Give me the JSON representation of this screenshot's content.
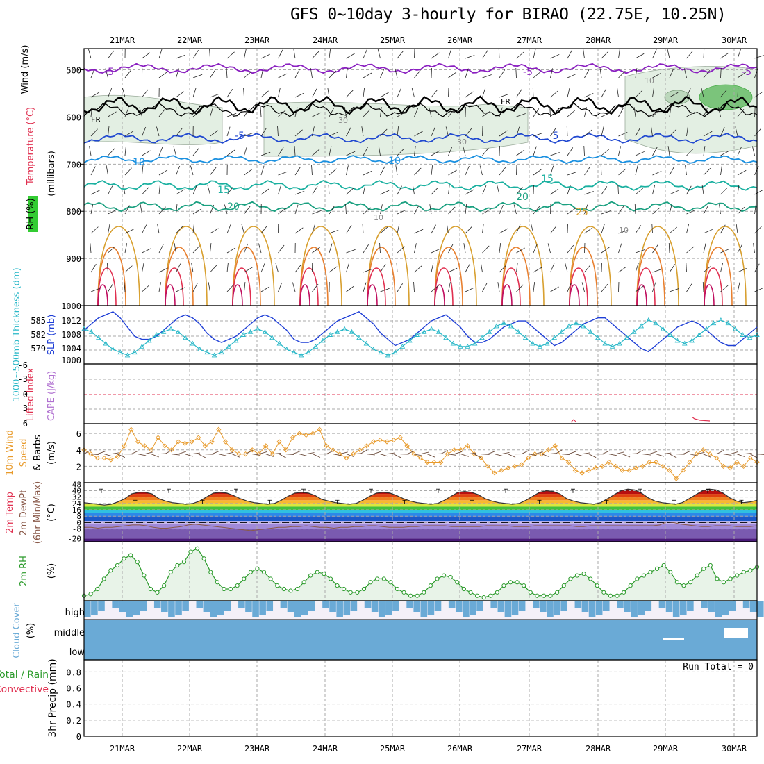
{
  "title": "GFS 0~10day 3-hourly for BIRAO (22.75E, 10.25N)",
  "colors": {
    "sea": "#1f3fd6",
    "thick": "#2ab8c8",
    "wind10": "#e89a2a",
    "rh": "#2a9a2a",
    "cloud": "#6aaad6",
    "fr": "#000000"
  },
  "chart_data": {
    "type": "meteogram",
    "dates": [
      "21MAR",
      "22MAR",
      "23MAR",
      "24MAR",
      "25MAR",
      "26MAR",
      "27MAR",
      "28MAR",
      "29MAR",
      "30MAR"
    ],
    "panels": {
      "upper_air": {
        "ylabels": [
          "Wind (m/s)",
          "Temperature (°C)",
          "RH (%)",
          "(millibars)"
        ],
        "yticks": [
          "500",
          "600",
          "700",
          "800",
          "900",
          "1000"
        ],
        "contour_labels": [
          "-5",
          "-5",
          "FR",
          "FR",
          "-5",
          "5",
          "-5",
          "10",
          "10",
          "15",
          "15",
          "20",
          "20",
          "25",
          "30",
          "30",
          "10",
          "10",
          "10"
        ]
      },
      "slp_thickness": {
        "ylabels": [
          "1000~500mb Thickness (dm)",
          "SLP (mb)"
        ],
        "left_ticks": [
          "585",
          "582",
          "579"
        ],
        "right_ticks": [
          "1012",
          "1008",
          "1004",
          "1000"
        ],
        "slp": [
          1008,
          1010,
          1012,
          1013,
          1014,
          1012,
          1009,
          1006,
          1005,
          1005,
          1006,
          1008,
          1010,
          1012,
          1013,
          1012,
          1010,
          1007,
          1005,
          1004,
          1005,
          1006,
          1008,
          1010,
          1012,
          1013,
          1012,
          1010,
          1008,
          1005,
          1004,
          1004,
          1005,
          1007,
          1009,
          1011,
          1012,
          1013,
          1014,
          1012,
          1010,
          1007,
          1005,
          1003,
          1004,
          1005,
          1007,
          1009,
          1011,
          1012,
          1013,
          1011,
          1009,
          1006,
          1004,
          1004,
          1005,
          1007,
          1009,
          1010,
          1011,
          1011,
          1009,
          1007,
          1005,
          1003,
          1004,
          1006,
          1008,
          1010,
          1011,
          1012,
          1012,
          1010,
          1008,
          1006,
          1004,
          1002,
          1001,
          1003,
          1005,
          1007,
          1009,
          1010,
          1011,
          1010,
          1008,
          1006,
          1004,
          1003,
          1003,
          1005,
          1007,
          1009
        ],
        "thickness": [
          583.0,
          582.5,
          581.5,
          580.5,
          579.5,
          579.0,
          578.5,
          579.0,
          580.0,
          581.0,
          582.0,
          582.5,
          583.0,
          582.5,
          581.5,
          580.5,
          579.5,
          579.0,
          578.5,
          579.0,
          580.0,
          581.0,
          582.0,
          582.5,
          583.0,
          582.5,
          581.5,
          580.5,
          579.5,
          579.0,
          578.5,
          579.0,
          580.0,
          581.0,
          582.0,
          582.5,
          583.0,
          582.5,
          581.5,
          580.5,
          579.5,
          579.0,
          578.5,
          579.0,
          580.0,
          581.0,
          582.0,
          582.5,
          583.0,
          582.5,
          581.5,
          580.5,
          580.0,
          580.0,
          580.5,
          581.5,
          582.5,
          583.5,
          584.0,
          583.5,
          582.5,
          581.5,
          580.5,
          580.0,
          580.5,
          581.5,
          582.5,
          583.5,
          584.0,
          583.5,
          582.5,
          581.5,
          580.5,
          580.0,
          580.5,
          581.5,
          582.5,
          583.5,
          584.5,
          584.0,
          583.0,
          582.0,
          581.0,
          580.5,
          581.0,
          582.0,
          583.0,
          584.0,
          584.5,
          584.0,
          583.0,
          582.0,
          581.5,
          582.0
        ]
      },
      "cape_li": {
        "ylabels": [
          "Lifted Index",
          "CAPE (J/kg)"
        ],
        "yticks": [
          "-6",
          "-3",
          "0",
          "3",
          "6"
        ]
      },
      "wind10m": {
        "ylabels": [
          "10m Wind",
          "Speed",
          "& Barbs",
          "(m/s)"
        ],
        "yticks": [
          "6",
          "4",
          "2"
        ],
        "speed": [
          4.0,
          3.5,
          3.0,
          3.0,
          2.8,
          3.2,
          4.5,
          6.5,
          5.0,
          4.5,
          4.0,
          5.5,
          4.5,
          4.0,
          5.0,
          4.8,
          5.0,
          5.5,
          4.5,
          5.0,
          6.5,
          5.0,
          4.0,
          3.5,
          3.5,
          4.0,
          3.5,
          4.5,
          3.5,
          5.0,
          4.0,
          5.5,
          6.0,
          5.8,
          6.0,
          6.5,
          4.5,
          4.0,
          3.5,
          3.0,
          3.5,
          4.0,
          4.5,
          5.0,
          5.2,
          5.0,
          5.2,
          5.5,
          4.5,
          3.5,
          3.0,
          2.5,
          2.5,
          2.5,
          3.5,
          4.0,
          4.0,
          4.5,
          3.5,
          3.0,
          2.0,
          1.2,
          1.5,
          1.8,
          2.0,
          2.2,
          3.0,
          3.5,
          3.5,
          4.0,
          4.5,
          3.0,
          2.5,
          1.5,
          1.2,
          1.5,
          1.8,
          2.0,
          2.5,
          2.0,
          1.5,
          1.5,
          1.8,
          2.0,
          2.5,
          2.5,
          2.0,
          1.5,
          0.5,
          1.5,
          2.5,
          3.5,
          4.0,
          3.5,
          3.0,
          2.0,
          1.8,
          2.5,
          2.0,
          3.0,
          2.5
        ]
      },
      "temp2m": {
        "ylabels": [
          "2m Temp",
          "2m DewPt",
          "(6hr Min/Max)",
          "(°C)"
        ],
        "yticks": [
          "48",
          "40",
          "32",
          "24",
          "16",
          "8",
          "0",
          "-8",
          "-20"
        ],
        "temp": [
          25,
          24,
          23,
          22,
          23,
          26,
          30,
          36,
          38,
          38,
          36,
          30,
          27,
          25,
          24,
          23,
          24,
          27,
          32,
          37,
          38,
          37,
          34,
          30,
          27,
          25,
          24,
          23,
          24,
          28,
          33,
          37,
          38,
          37,
          34,
          29,
          27,
          25,
          24,
          23,
          24,
          28,
          33,
          37,
          38,
          37,
          34,
          30,
          27,
          25,
          24,
          23,
          24,
          28,
          33,
          38,
          39,
          38,
          35,
          30,
          27,
          25,
          24,
          23,
          24,
          28,
          33,
          38,
          40,
          39,
          36,
          30,
          27,
          25,
          24,
          23,
          25,
          30,
          35,
          40,
          42,
          41,
          37,
          31,
          27,
          25,
          24,
          23,
          25,
          30,
          35,
          40,
          42,
          41,
          37,
          31,
          27,
          25,
          26,
          28
        ],
        "dewpt": [
          -6,
          -6,
          -7,
          -6,
          -6,
          -5,
          -4,
          -3,
          -3,
          -4,
          -6,
          -7,
          -7,
          -6,
          -5,
          -3,
          -2,
          -3,
          -4,
          -5,
          -6,
          -7,
          -8,
          -9,
          -10,
          -9,
          -8,
          -7,
          -6,
          -6,
          -5,
          -5,
          -4,
          -5,
          -6,
          -6,
          -7,
          -6,
          -6,
          -5,
          -5,
          -4,
          -4,
          -5,
          -6,
          -6,
          -6,
          -5,
          -5,
          -4,
          -4,
          -4,
          -4,
          -5,
          -5,
          -5,
          -5,
          -5,
          -4,
          -4,
          -4,
          -4,
          -5,
          -5,
          -5,
          -4,
          -4,
          -4,
          -4,
          -4,
          -4,
          -5,
          -5,
          -4,
          -4,
          -4,
          -4,
          -4,
          -4,
          -4,
          -4,
          -4,
          -4,
          -3,
          1,
          0,
          -2,
          -3,
          -4,
          -5,
          -5,
          -4,
          -4,
          -4,
          -5,
          -5,
          -5,
          -4
        ]
      },
      "rh2m": {
        "ylabels": [
          "2m RH",
          "(%)"
        ],
        "rh": [
          18,
          19,
          22,
          28,
          33,
          36,
          40,
          42,
          38,
          30,
          22,
          20,
          24,
          32,
          36,
          38,
          44,
          46,
          40,
          32,
          26,
          22,
          22,
          24,
          28,
          32,
          34,
          32,
          28,
          24,
          22,
          21,
          22,
          26,
          30,
          32,
          31,
          28,
          24,
          22,
          20,
          20,
          22,
          26,
          28,
          28,
          26,
          22,
          20,
          18,
          18,
          20,
          24,
          28,
          30,
          29,
          26,
          22,
          20,
          18,
          17,
          18,
          20,
          24,
          26,
          26,
          24,
          20,
          18,
          18,
          18,
          20,
          24,
          28,
          30,
          31,
          28,
          24,
          20,
          18,
          18,
          20,
          24,
          28,
          30,
          32,
          34,
          36,
          32,
          26,
          24,
          26,
          30,
          34,
          36,
          28,
          26,
          28,
          30,
          32,
          33,
          35
        ]
      },
      "cloud": {
        "ylabels": [
          "Cloud Cover",
          "(%)"
        ],
        "levels": [
          "high",
          "middle",
          "low"
        ]
      },
      "precip": {
        "ylabels": [
          "Total / Rain",
          "Convective",
          "3hr Precip (mm)"
        ],
        "yticks": [
          "0.8",
          "0.6",
          "0.4",
          "0.2",
          "0"
        ],
        "run_total_label": "Run Total = 0"
      }
    }
  }
}
